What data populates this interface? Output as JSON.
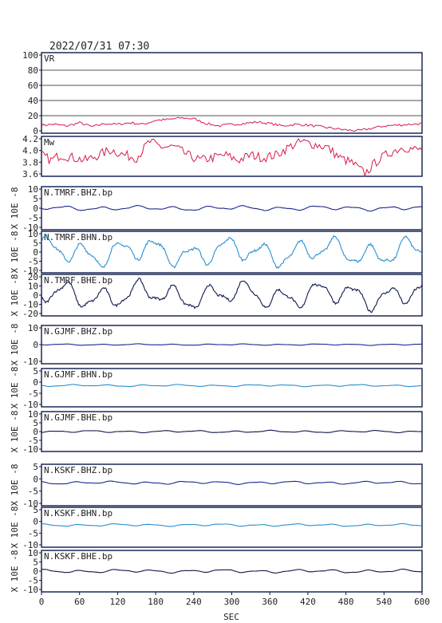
{
  "header": {
    "timestamp": "2022/07/31 07:30"
  },
  "colors": {
    "vr": "#d81b4a",
    "mw": "#d81b4a",
    "navy": "#1a2a8c",
    "light": "#2a90d0",
    "dark": "#10184a",
    "frame": "#0b1a4a"
  },
  "chart_data": {
    "type": "line",
    "xlabel": "SEC",
    "xlim": [
      0,
      600
    ],
    "xticks": [
      "0",
      "60",
      "120",
      "180",
      "240",
      "300",
      "360",
      "420",
      "480",
      "540",
      "600"
    ],
    "panels": [
      {
        "id": "vr",
        "label": "VR",
        "ylabel": "",
        "yticks": [
          "100",
          "80",
          "60",
          "40",
          "20",
          "0"
        ],
        "ylim": [
          0,
          100
        ],
        "color": "vr",
        "grid": true
      },
      {
        "id": "mw",
        "label": "Mw",
        "ylabel": "",
        "yticks": [
          "4.2",
          "4.0",
          "3.8",
          "3.6"
        ],
        "ylim": [
          3.55,
          4.3
        ],
        "color": "mw"
      },
      {
        "id": "tmrf_bhz",
        "label": "N.TMRF.BHZ.bp",
        "ylabel": "X 10E -8",
        "yticks": [
          "10",
          "5",
          "0",
          "-5",
          "-10"
        ],
        "ylim": [
          -10,
          10
        ],
        "color": "navy",
        "amp": 1.2
      },
      {
        "id": "tmrf_bhn",
        "label": "N.TMRF.BHN.bp",
        "ylabel": "X 10E -8",
        "yticks": [
          "10",
          "5",
          "0",
          "-5",
          "-10"
        ],
        "ylim": [
          -12,
          12
        ],
        "color": "light",
        "amp": 9
      },
      {
        "id": "tmrf_bhe",
        "label": "N.TMRF.BHE.bp",
        "ylabel": "X 10E -8",
        "yticks": [
          "20",
          "10",
          "0",
          "-10",
          "-20"
        ],
        "ylim": [
          -22,
          22
        ],
        "color": "dark",
        "amp": 16
      },
      {
        "id": "gjmf_bhz",
        "label": "N.GJMF.BHZ.bp",
        "ylabel": "X 10E -8",
        "yticks": [
          "10",
          "0",
          "-10"
        ],
        "ylim": [
          -10,
          10
        ],
        "color": "navy",
        "amp": 0.4
      },
      {
        "id": "gjmf_bhn",
        "label": "N.GJMF.BHN.bp",
        "ylabel": "X 10E -8",
        "yticks": [
          "5",
          "0",
          "-5",
          "-10"
        ],
        "ylim": [
          -10,
          8
        ],
        "color": "light",
        "amp": 0.5
      },
      {
        "id": "gjmf_bhe",
        "label": "N.GJMF.BHE.bp",
        "ylabel": "X 10E -8",
        "yticks": [
          "10",
          "5",
          "0",
          "-5",
          "-10"
        ],
        "ylim": [
          -10,
          10
        ],
        "color": "dark",
        "amp": 0.6
      },
      {
        "id": "kskf_bhz",
        "label": "N.KSKF.BHZ.bp",
        "ylabel": "X 10E -8",
        "yticks": [
          "5",
          "0",
          "-5",
          "-10"
        ],
        "ylim": [
          -10,
          8
        ],
        "color": "navy",
        "amp": 0.7
      },
      {
        "id": "kskf_bhn",
        "label": "N.KSKF.BHN.bp",
        "ylabel": "X 10E -8",
        "yticks": [
          "5",
          "0",
          "-5",
          "-10"
        ],
        "ylim": [
          -10,
          8
        ],
        "color": "light",
        "amp": 0.6
      },
      {
        "id": "kskf_bhe",
        "label": "N.KSKF.BHE.bp",
        "ylabel": "X 10E -8",
        "yticks": [
          "10",
          "5",
          "0",
          "-5",
          "-10"
        ],
        "ylim": [
          -10,
          10
        ],
        "color": "dark",
        "amp": 0.9
      }
    ],
    "vr_points": [
      [
        0,
        10
      ],
      [
        20,
        11
      ],
      [
        40,
        9
      ],
      [
        60,
        13
      ],
      [
        80,
        8
      ],
      [
        100,
        12
      ],
      [
        120,
        11
      ],
      [
        140,
        13
      ],
      [
        160,
        11
      ],
      [
        180,
        16
      ],
      [
        200,
        17
      ],
      [
        220,
        19
      ],
      [
        240,
        18
      ],
      [
        260,
        12
      ],
      [
        280,
        9
      ],
      [
        300,
        11
      ],
      [
        320,
        12
      ],
      [
        340,
        14
      ],
      [
        360,
        12
      ],
      [
        380,
        9
      ],
      [
        400,
        11
      ],
      [
        420,
        10
      ],
      [
        440,
        8
      ],
      [
        460,
        6
      ],
      [
        480,
        4
      ],
      [
        500,
        3
      ],
      [
        520,
        6
      ],
      [
        540,
        9
      ],
      [
        560,
        10
      ],
      [
        580,
        11
      ],
      [
        600,
        12
      ]
    ],
    "mw_points": [
      [
        0,
        3.95
      ],
      [
        15,
        3.85
      ],
      [
        30,
        3.95
      ],
      [
        50,
        3.9
      ],
      [
        70,
        3.85
      ],
      [
        90,
        3.95
      ],
      [
        110,
        4.05
      ],
      [
        130,
        3.95
      ],
      [
        150,
        3.9
      ],
      [
        170,
        4.2
      ],
      [
        190,
        4.1
      ],
      [
        210,
        4.1
      ],
      [
        230,
        3.95
      ],
      [
        250,
        3.85
      ],
      [
        270,
        3.9
      ],
      [
        290,
        3.95
      ],
      [
        310,
        3.85
      ],
      [
        330,
        3.95
      ],
      [
        350,
        3.9
      ],
      [
        370,
        3.95
      ],
      [
        390,
        4.1
      ],
      [
        410,
        4.2
      ],
      [
        430,
        4.15
      ],
      [
        450,
        4.1
      ],
      [
        470,
        3.9
      ],
      [
        490,
        3.8
      ],
      [
        510,
        3.6
      ],
      [
        530,
        3.85
      ],
      [
        550,
        4.0
      ],
      [
        570,
        4.1
      ],
      [
        590,
        4.05
      ],
      [
        600,
        4.05
      ]
    ]
  }
}
